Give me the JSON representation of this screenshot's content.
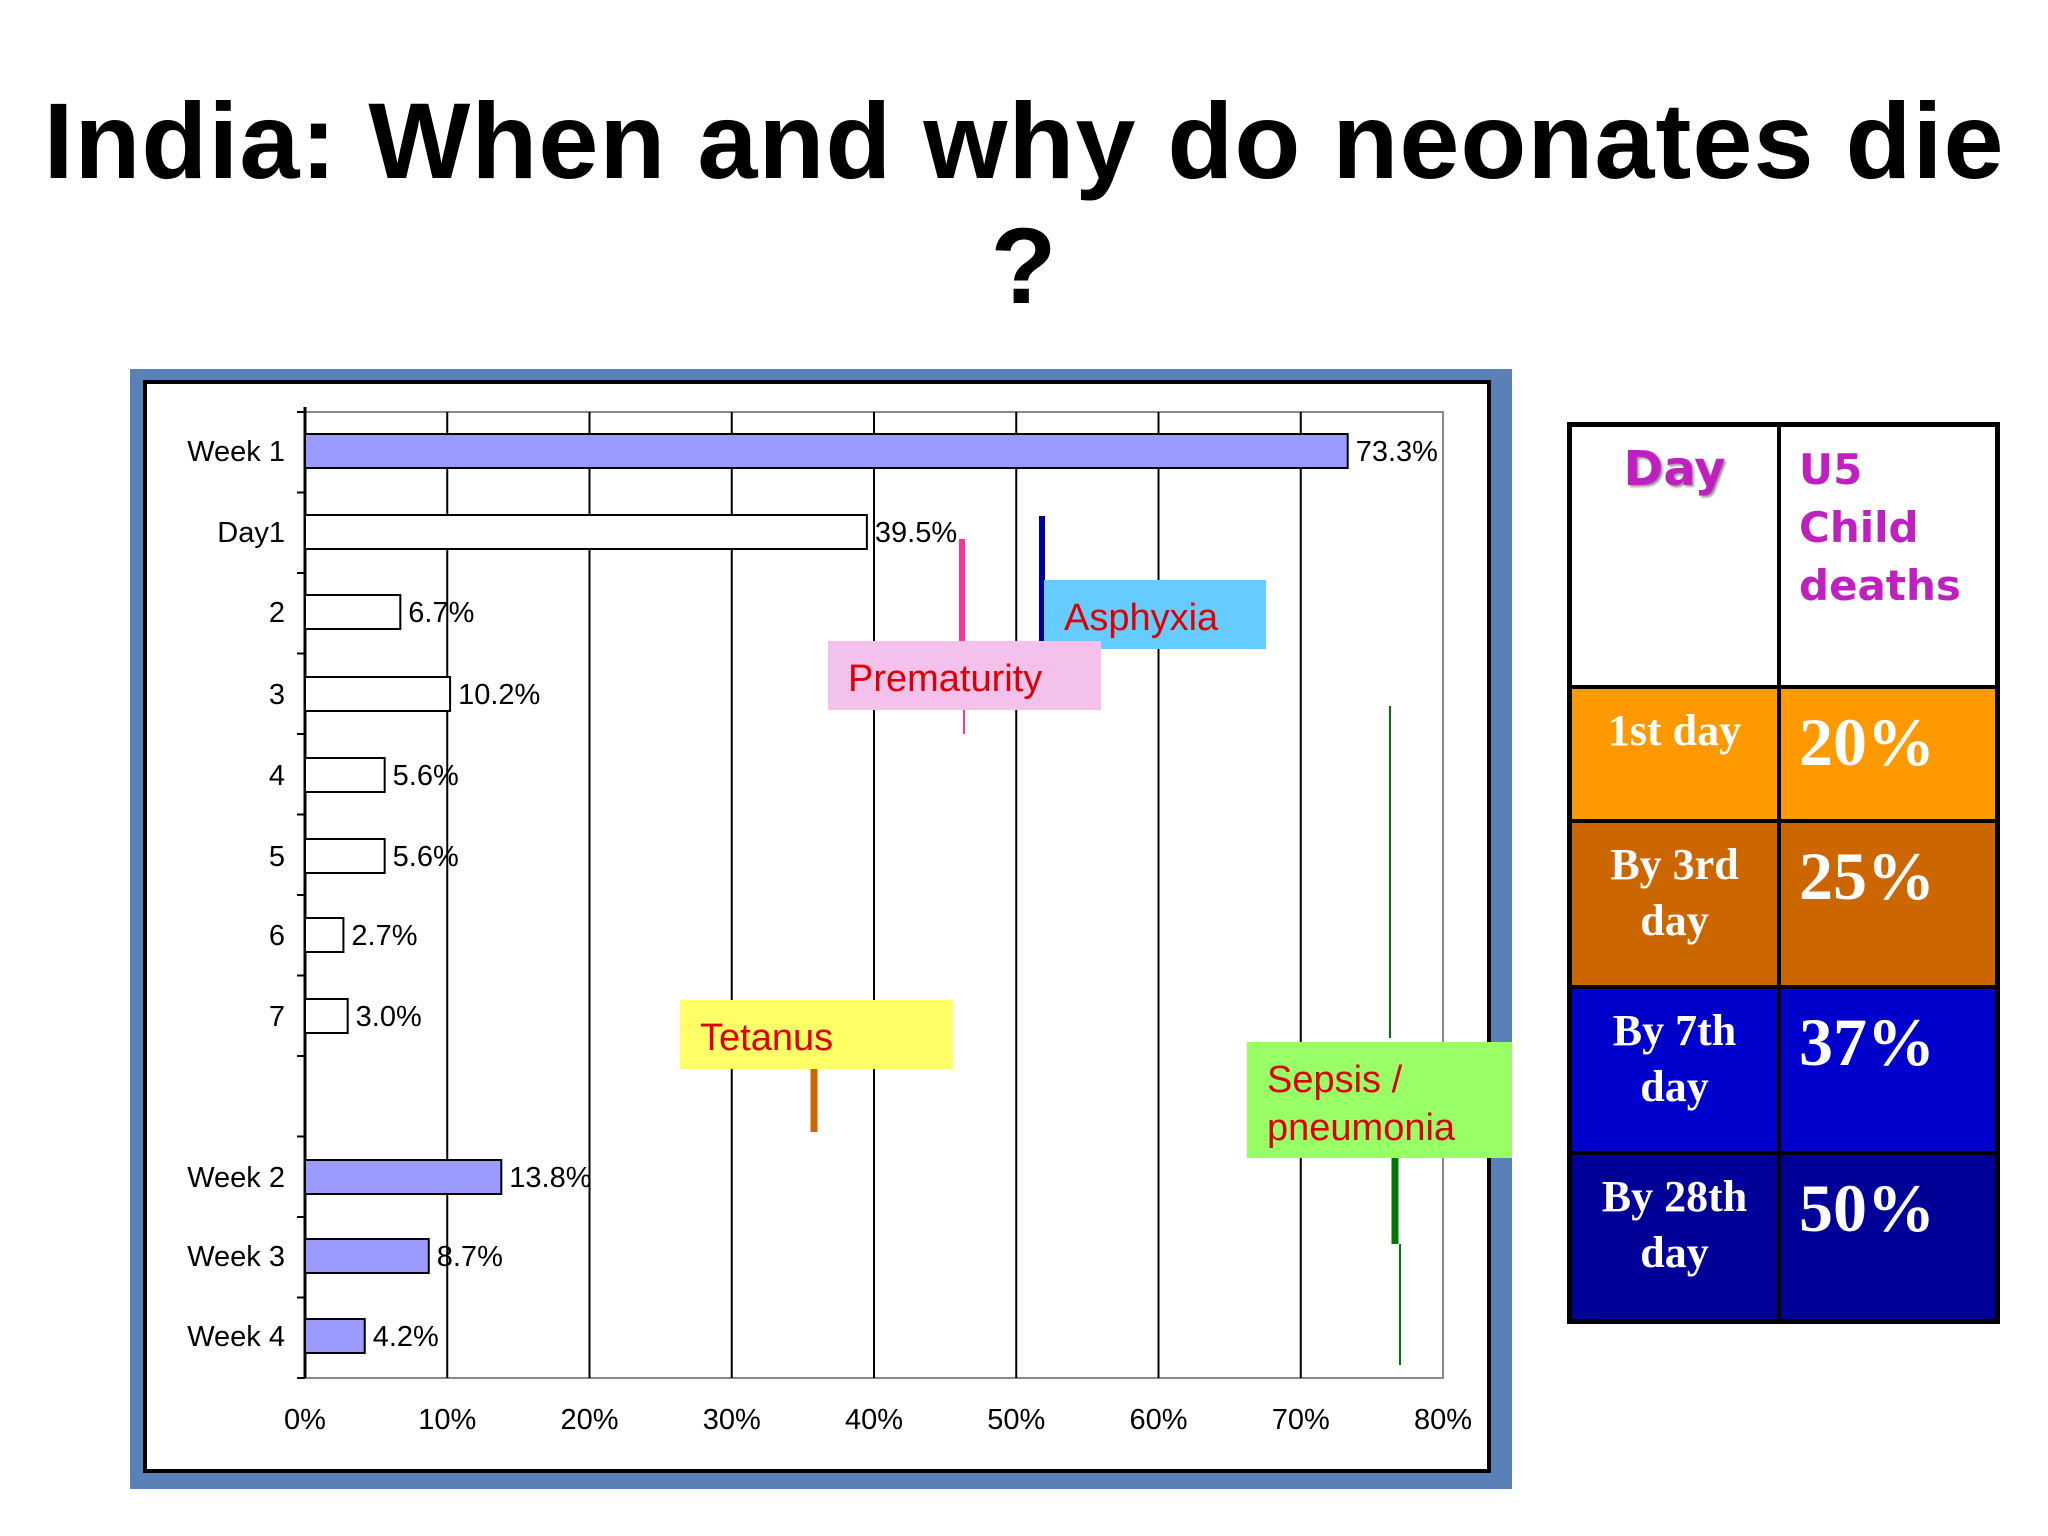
{
  "slide": {
    "title": "India: When and why do neonates die ?"
  },
  "chart_data": {
    "type": "bar",
    "orientation": "horizontal",
    "categories": [
      "Week 1",
      "Day1",
      "2",
      "3",
      "4",
      "5",
      "6",
      "7",
      "Week 2",
      "Week 3",
      "Week 4"
    ],
    "values": [
      73.3,
      39.5,
      6.7,
      10.2,
      5.6,
      5.6,
      2.7,
      3.0,
      13.8,
      8.7,
      4.2
    ],
    "value_labels": [
      "73.3%",
      "39.5%",
      "6.7%",
      "10.2%",
      "5.6%",
      "5.6%",
      "2.7%",
      "3.0%",
      "13.8%",
      "8.7%",
      "4.2%"
    ],
    "bar_colors": [
      "#9b9bff",
      "#ffffff",
      "#ffffff",
      "#ffffff",
      "#ffffff",
      "#ffffff",
      "#ffffff",
      "#ffffff",
      "#9b9bff",
      "#9b9bff",
      "#9b9bff"
    ],
    "x_ticks": [
      "0%",
      "10%",
      "20%",
      "30%",
      "40%",
      "50%",
      "60%",
      "70%",
      "80%"
    ],
    "xlim": [
      0,
      80
    ],
    "grid": true,
    "callouts": [
      {
        "label": "Asphyxia",
        "background": "#66ccff",
        "marker_color": "#000099",
        "marker_x": 59.8
      },
      {
        "label": "Prematurity",
        "background": "#f4c0ec",
        "marker_color": "#ff3399",
        "marker_x": 46.3
      },
      {
        "label": "Tetanus",
        "background": "#ffff66",
        "marker_color": "#cc6600",
        "marker_x": 36
      },
      {
        "label": "Sepsis /\npneumonia",
        "background": "#99ff66",
        "marker_color": "#007700",
        "marker_x": 76.7
      }
    ]
  },
  "table": {
    "header": {
      "day": "Day",
      "u5": "U5\nChild\ndeaths"
    },
    "rows": [
      {
        "day": "1st day",
        "value": "20%",
        "color": "#ff9900"
      },
      {
        "day": "By 3rd\nday",
        "value": "25%",
        "color": "#cc6600"
      },
      {
        "day": "By 7th\nday",
        "value": "37%",
        "color": "#0000cc"
      },
      {
        "day": "By 28th\nday",
        "value": "50%",
        "color": "#000099"
      }
    ]
  }
}
